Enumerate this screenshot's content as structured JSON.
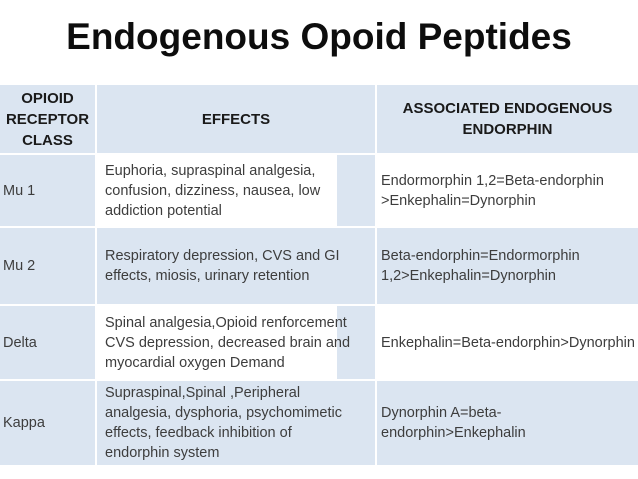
{
  "title": "Endogenous Opoid Peptides",
  "table": {
    "headers": {
      "receptor_class": "OPIOID\nRECEPTOR\nCLASS",
      "effects": "EFFECTS",
      "endorphin": "ASSOCIATED ENDOGENOUS\nENDORPHIN"
    },
    "rows": [
      {
        "receptor_class": "Mu 1",
        "effects": "Euphoria, supraspinal analgesia,\nconfusion, dizziness, nausea, low\naddiction potential",
        "endorphin": "Endormorphin 1,2=Beta-endorphin\n>Enkephalin=Dynorphin"
      },
      {
        "receptor_class": "Mu 2",
        "effects": "Respiratory depression, CVS and GI\neffects, miosis, urinary retention",
        "endorphin": "Beta-endorphin=Endormorphin\n1,2>Enkephalin=Dynorphin"
      },
      {
        "receptor_class": "Delta",
        "effects": "Spinal analgesia,Opioid renforcement\nCVS depression, decreased brain and\nmyocardial oxygen Demand",
        "endorphin": "Enkephalin=Beta-endorphin>Dynorphin"
      },
      {
        "receptor_class": "Kappa",
        "effects": "Supraspinal,Spinal ,Peripheral\nanalgesia, dysphoria, psychomimetic\neffects, feedback inhibition of\nendorphin system",
        "endorphin": "Dynorphin A=beta-\nendorphin>Enkephalin"
      }
    ],
    "colors": {
      "band_blue": "#dbe5f1",
      "body_text": "#3d3d3d",
      "header_text": "#1a1a1a"
    }
  }
}
